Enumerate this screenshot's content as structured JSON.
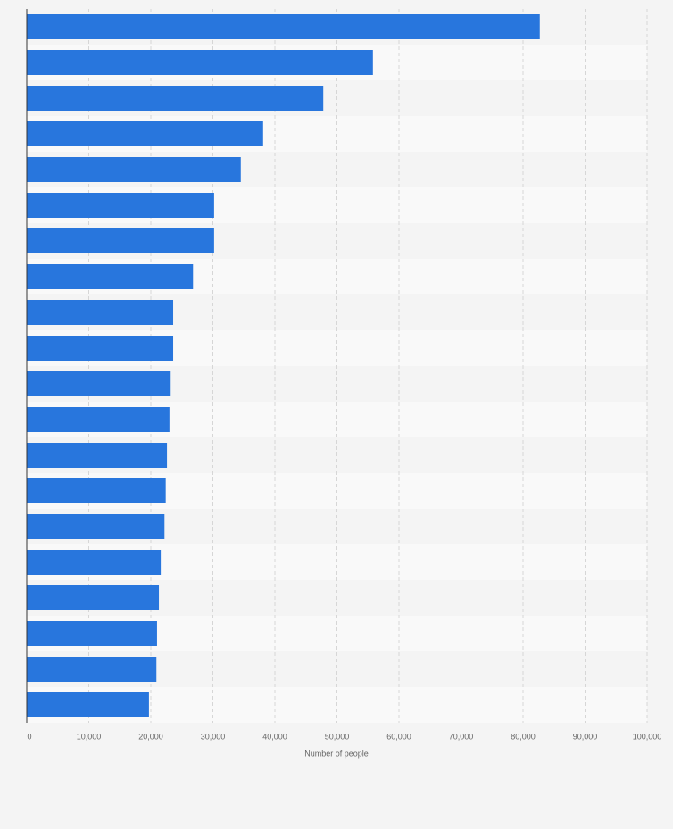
{
  "chart_data": {
    "type": "bar",
    "orientation": "horizontal",
    "categories": [
      null,
      null,
      null,
      null,
      null,
      null,
      null,
      null,
      null,
      null,
      null,
      null,
      null,
      null,
      null,
      null,
      null,
      null,
      null,
      null
    ],
    "values": [
      82700,
      55800,
      47800,
      38100,
      34500,
      30200,
      30200,
      26800,
      23600,
      23600,
      23200,
      23000,
      22600,
      22400,
      22200,
      21600,
      21300,
      21000,
      20900,
      19700
    ],
    "color": "#2876dd",
    "xlabel": "Number of people",
    "xlim": [
      0,
      100000
    ],
    "xticks": [
      0,
      {
        "value": 10000,
        "label": "10,000"
      },
      {
        "value": 20000,
        "label": "20,000"
      },
      {
        "value": 30000,
        "label": "30,000"
      },
      {
        "value": 40000,
        "label": "40,000"
      },
      {
        "value": 50000,
        "label": "50,000"
      },
      {
        "value": 60000,
        "label": "60,000"
      },
      {
        "value": 70000,
        "label": "70,000"
      },
      {
        "value": 80000,
        "label": "80,000"
      },
      {
        "value": 90000,
        "label": "90,000"
      },
      {
        "value": 100000,
        "label": "100,000"
      }
    ],
    "grid": true
  }
}
